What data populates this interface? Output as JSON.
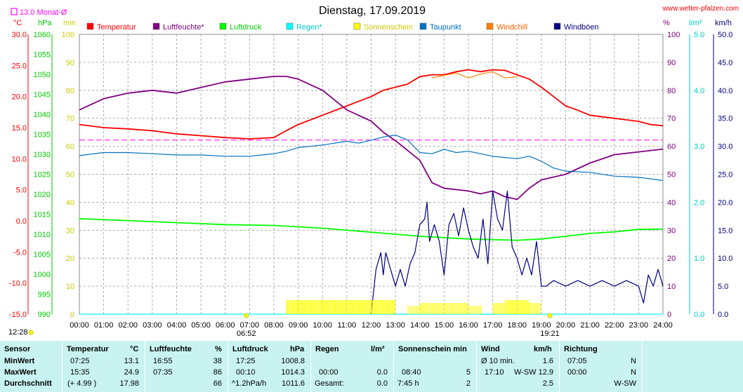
{
  "header": {
    "title": "Dienstag, 17.09.2019",
    "website": "www.wetter-pfalzen.com",
    "monat_label": "13.0 Monat-Ø",
    "sunrise_time": "06:52",
    "sunset_time": "19:21",
    "noon_time": "12:28"
  },
  "colors": {
    "temperatur": "#ff0000",
    "luftfeuchte": "#800080",
    "luftdruck": "#00ff00",
    "regen": "#00ffff",
    "sonnenschein": "#ffff00",
    "taupunkt": "#0070c0",
    "windchill": "#ff8000",
    "windboeen": "#000080",
    "table_bg": "#c8f3f0"
  },
  "chart_data": {
    "type": "line",
    "title": "Dienstag, 17.09.2019",
    "x_ticks": [
      "00:00",
      "01:00",
      "02:00",
      "03:00",
      "04:00",
      "05:00",
      "06:00",
      "07:00",
      "08:00",
      "09:00",
      "10:00",
      "11:00",
      "12:00",
      "13:00",
      "14:00",
      "15:00",
      "16:00",
      "17:00",
      "18:00",
      "19:00",
      "20:00",
      "21:00",
      "22:00",
      "23:00",
      "24:00"
    ],
    "x_range_hours": [
      0,
      24
    ],
    "grid": true,
    "legend": {
      "position": "top",
      "entries": [
        "Temperatur",
        "Luftfeuchte*",
        "Luftdruck",
        "Regen*",
        "Sonnenschein",
        "Taupunkt",
        "Windchill",
        "Windböen"
      ]
    },
    "axes": {
      "temp": {
        "unit": "°C",
        "range": [
          -15,
          30
        ],
        "ticks": [
          "30.0",
          "25.0",
          "20.0",
          "15.0",
          "10.0",
          "5.0",
          "0.0",
          "-5.0",
          "-10.0",
          "-15.0"
        ]
      },
      "hpa": {
        "unit": "hPa",
        "range": [
          990,
          1060
        ],
        "ticks": [
          "1060",
          "1055",
          "1050",
          "1045",
          "1040",
          "1035",
          "1030",
          "1025",
          "1020",
          "1015",
          "1010",
          "1005",
          "1000",
          "995",
          "990"
        ]
      },
      "min": {
        "unit": "min",
        "range": [
          0,
          100
        ],
        "ticks": [
          "100",
          "90",
          "80",
          "70",
          "60",
          "50",
          "40",
          "30",
          "20",
          "10",
          "0"
        ]
      },
      "pct": {
        "unit": "%",
        "range": [
          0,
          100
        ],
        "ticks": [
          "100",
          "90",
          "80",
          "70",
          "60",
          "50",
          "40",
          "30",
          "20",
          "10",
          "0"
        ]
      },
      "lm2": {
        "unit": "l/m²",
        "range": [
          0,
          5
        ],
        "ticks": [
          "5.0",
          "4.0",
          "3.0",
          "2.0",
          "1.0",
          "0.0"
        ]
      },
      "kmh": {
        "unit": "km/h",
        "range": [
          0,
          50
        ],
        "ticks": [
          "50.0",
          "45.0",
          "40.0",
          "35.0",
          "30.0",
          "25.0",
          "20.0",
          "15.0",
          "10.0",
          "5.0",
          "0.0"
        ]
      }
    },
    "monat_avg_temp": 13.0,
    "series": [
      {
        "name": "Temperatur",
        "axis": "temp",
        "x": [
          0,
          1,
          2,
          3,
          4,
          5,
          6,
          7,
          8,
          8.5,
          9,
          10,
          11,
          12,
          12.5,
          13,
          13.5,
          14,
          14.5,
          15,
          15.5,
          16,
          16.5,
          17,
          17.5,
          18,
          18.5,
          19,
          19.5,
          20,
          20.5,
          21,
          22,
          23,
          23.5,
          24
        ],
        "y": [
          15.5,
          15.0,
          14.8,
          14.5,
          14.0,
          13.7,
          13.4,
          13.2,
          13.4,
          14.5,
          15.5,
          17.0,
          18.5,
          20.0,
          21.0,
          21.5,
          22.0,
          23.2,
          23.5,
          23.5,
          24.0,
          24.3,
          24.0,
          24.3,
          24.2,
          23.5,
          22.8,
          21.5,
          20.0,
          18.5,
          17.8,
          17.0,
          16.5,
          16.0,
          15.5,
          15.3
        ]
      },
      {
        "name": "Luftfeuchte*",
        "axis": "pct",
        "x": [
          0,
          1,
          2,
          3,
          4,
          5,
          6,
          7,
          8,
          8.5,
          9,
          10,
          11,
          12,
          12.5,
          13,
          14,
          14.5,
          15,
          16,
          16.5,
          17,
          17.5,
          18,
          18.5,
          19,
          20,
          21,
          22,
          23,
          24
        ],
        "y": [
          73,
          77,
          79,
          80,
          79,
          81,
          83,
          84,
          85,
          85,
          84,
          80,
          73,
          69,
          65,
          62,
          55,
          47,
          45,
          44,
          43,
          44,
          42,
          41,
          45,
          48,
          50,
          54,
          57,
          58,
          59
        ]
      },
      {
        "name": "Luftdruck",
        "axis": "hpa",
        "x": [
          0,
          2,
          4,
          6,
          8,
          10,
          12,
          14,
          16,
          18,
          19,
          20,
          21,
          22,
          23,
          24
        ],
        "y": [
          1013.9,
          1013.4,
          1012.9,
          1012.4,
          1012.2,
          1011.5,
          1010.5,
          1009.5,
          1008.8,
          1008.5,
          1008.8,
          1009.5,
          1010.2,
          1010.6,
          1011.2,
          1011.3
        ]
      },
      {
        "name": "Regen*",
        "axis": "lm2",
        "x": [
          0,
          24
        ],
        "y": [
          0,
          0
        ]
      },
      {
        "name": "Taupunkt",
        "axis": "temp",
        "x": [
          0,
          1,
          2,
          3,
          4,
          5,
          6,
          7,
          8,
          8.5,
          9,
          10,
          11,
          11.5,
          12,
          12.5,
          13,
          13.5,
          14,
          14.5,
          15,
          15.5,
          16,
          16.5,
          17,
          17.5,
          18,
          18.5,
          19,
          19.5,
          20,
          21,
          22,
          23,
          24
        ],
        "y": [
          10.5,
          11.0,
          11.0,
          10.8,
          10.6,
          10.6,
          10.4,
          10.4,
          10.8,
          11.2,
          11.8,
          12.2,
          12.8,
          12.5,
          13.0,
          13.5,
          13.8,
          13.0,
          11.0,
          10.8,
          11.5,
          11.0,
          11.2,
          10.8,
          10.4,
          10.2,
          10.0,
          10.4,
          9.6,
          8.5,
          8.0,
          7.8,
          7.2,
          7.0,
          6.5
        ]
      },
      {
        "name": "Windchill",
        "axis": "temp",
        "x": [
          14.5,
          15,
          15.5,
          16,
          16.5,
          17,
          17.5,
          18
        ],
        "y": [
          23.0,
          23.4,
          23.8,
          23.0,
          23.6,
          24.0,
          23.0,
          23.2
        ]
      },
      {
        "name": "Windböen",
        "axis": "kmh",
        "x": [
          12,
          12.2,
          12.4,
          12.5,
          12.6,
          12.8,
          13,
          13.2,
          13.4,
          13.6,
          13.8,
          14,
          14.2,
          14.3,
          14.4,
          14.6,
          14.8,
          15,
          15.2,
          15.4,
          15.6,
          15.8,
          16,
          16.2,
          16.4,
          16.6,
          16.8,
          17,
          17.2,
          17.4,
          17.6,
          17.8,
          18,
          18.2,
          18.4,
          18.6,
          18.8,
          19,
          19.2,
          19.5,
          20,
          20.5,
          21,
          21.5,
          22,
          22.5,
          23,
          23.2,
          23.4,
          23.6,
          23.8,
          24
        ],
        "y": [
          0,
          8,
          11,
          7,
          11,
          8,
          5,
          8,
          5,
          9,
          11,
          16,
          17,
          20,
          13,
          16,
          13,
          7,
          16,
          18,
          14,
          19,
          15,
          12,
          10,
          17,
          9,
          22,
          17,
          15,
          22,
          12,
          10,
          7,
          10,
          7,
          13,
          5,
          5,
          6,
          5,
          6,
          5,
          6,
          5,
          6,
          5,
          2,
          7,
          5,
          8,
          5
        ]
      },
      {
        "name": "Sonnenschein",
        "axis": "min",
        "x": [
          8.5,
          9,
          9.5,
          10,
          10.5,
          11,
          11.5,
          12,
          12.5,
          13,
          13.5,
          14,
          14.5,
          15,
          15.5,
          16,
          16.5,
          17,
          17.5,
          18,
          18.5,
          19
        ],
        "y": [
          5,
          5,
          5,
          5,
          5,
          5,
          5,
          5,
          5,
          0,
          3,
          4,
          4,
          4,
          4,
          3,
          0,
          4,
          5,
          5,
          4,
          0
        ]
      }
    ]
  },
  "table": {
    "headers": {
      "sensor": "Sensor",
      "temperatur": "Temperatur",
      "temperatur_unit": "°C",
      "luftfeuchte": "Luftfeuchte",
      "luftfeuchte_unit": "%",
      "luftdruck": "Luftdruck",
      "luftdruck_unit": "hPa",
      "regen": "Regen",
      "regen_unit": "l/m²",
      "sonnenschein": "Sonnenschein min",
      "wind": "Wind",
      "wind_unit": "km/h",
      "richtung": "Richtung"
    },
    "rows": [
      {
        "label": "MinWert",
        "temp_time": "07:25",
        "temp_val": "13.1",
        "feuchte_time": "16:55",
        "feuchte_val": "38",
        "druck_time": "17:25",
        "druck_val": "1008.8",
        "regen_time": "",
        "regen_val": "",
        "sonne_time": "",
        "sonne_val": "",
        "wind_time": "Ø 10 min.",
        "wind_val": "1.6",
        "richtung_time": "07:05",
        "richtung_val": "N"
      },
      {
        "label": "MaxWert",
        "temp_time": "15:35",
        "temp_val": "24.9",
        "feuchte_time": "07:35",
        "feuchte_val": "86",
        "druck_time": "00:10",
        "druck_val": "1014.3",
        "regen_time": "00:00",
        "regen_val": "0.0",
        "sonne_time": "08:40",
        "sonne_val": "5",
        "wind_time": "17:10",
        "wind_val": "W-SW 12.9",
        "richtung_time": "00:00",
        "richtung_val": "N"
      },
      {
        "label": "Durchschnitt",
        "temp_time": "(+ 4.99 )",
        "temp_val": "17.98",
        "feuchte_time": "",
        "feuchte_val": "66",
        "druck_time": "^1.2hPa/h",
        "druck_val": "1011.6",
        "regen_time": "Gesamt:",
        "regen_val": "0.0",
        "sonne_time": "7:45 h",
        "sonne_val": "2",
        "wind_time": "",
        "wind_val": "2.5",
        "richtung_time": "",
        "richtung_val": "W-SW"
      }
    ]
  }
}
